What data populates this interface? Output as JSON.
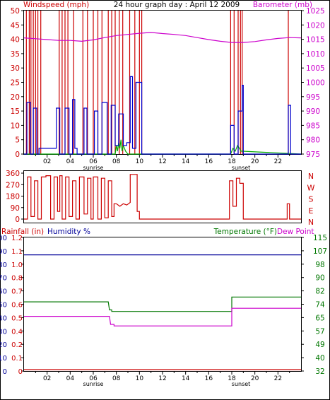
{
  "title": "24 hour graph day : April 12 2009",
  "colors": {
    "wind_speed": "#0000cc",
    "wind_gust": "#cc0000",
    "barometer": "#cc00cc",
    "temperature": "#007700",
    "dew_point": "#cc00cc",
    "humidity": "#000099",
    "rainfall": "#cc0000",
    "wind_direction": "#cc0000",
    "gust_green": "#00aa00",
    "frame": "#000000"
  },
  "chart_data": [
    {
      "type": "line",
      "left_axis_label": "Windspeed (mph)",
      "right_axis_label": "Barometer (mb)",
      "xlim": [
        0,
        24
      ],
      "x_tick_labels": [
        "02",
        "04",
        "06",
        "08",
        "10",
        "12",
        "14",
        "16",
        "18",
        "20",
        "22"
      ],
      "x_ticks": [
        2,
        4,
        6,
        8,
        10,
        12,
        14,
        16,
        18,
        20,
        22
      ],
      "sunrise_label": "sunrise",
      "sunrise_hour": 6.0,
      "sunset_label": "sunset",
      "sunset_hour": 18.8,
      "left_ylim": [
        0,
        50
      ],
      "left_ticks": [
        "0",
        "5",
        "10",
        "15",
        "20",
        "25",
        "30",
        "35",
        "40",
        "45",
        "50"
      ],
      "right_ylim": [
        975,
        1025
      ],
      "right_ticks": [
        "975",
        "980",
        "985",
        "990",
        "995",
        "1000",
        "1005",
        "1010",
        "1015",
        "1020",
        "1025"
      ],
      "gust_spikes": [
        0.2,
        0.45,
        0.6,
        0.8,
        1.0,
        1.2,
        1.45,
        3.05,
        3.3,
        3.55,
        3.8,
        4.3,
        5.1,
        5.5,
        6.0,
        6.4,
        6.75,
        7.3,
        7.6,
        7.9,
        8.25,
        8.55,
        9.15,
        9.6,
        10.0,
        10.2,
        17.9,
        18.2,
        18.55,
        18.75,
        18.9,
        22.9
      ],
      "barometer": {
        "x": [
          0,
          1,
          2,
          3,
          4,
          5,
          6,
          7,
          8,
          9,
          10,
          11,
          12,
          13,
          14,
          15,
          16,
          17,
          18,
          19,
          20,
          21,
          22,
          23,
          24
        ],
        "y": [
          1015.5,
          1015.2,
          1014.9,
          1014.6,
          1014.6,
          1014.3,
          1014.8,
          1015.6,
          1016.3,
          1016.7,
          1017.1,
          1017.4,
          1017.0,
          1016.7,
          1016.3,
          1015.6,
          1014.9,
          1014.3,
          1013.9,
          1013.9,
          1014.2,
          1014.8,
          1015.3,
          1015.6,
          1015.5
        ]
      },
      "wind_speed": {
        "x": [
          0,
          0.25,
          0.25,
          0.55,
          0.55,
          0.8,
          0.8,
          1.1,
          1.1,
          1.3,
          1.3,
          2.8,
          2.8,
          3.1,
          3.1,
          3.55,
          3.55,
          3.9,
          3.9,
          4.2,
          4.2,
          4.4,
          4.4,
          4.6,
          4.6,
          5.2,
          5.2,
          5.45,
          5.45,
          6.1,
          6.1,
          6.4,
          6.4,
          6.75,
          6.75,
          7.2,
          7.2,
          7.55,
          7.55,
          7.9,
          7.9,
          8.2,
          8.2,
          8.6,
          8.6,
          8.9,
          8.9,
          9.2,
          9.2,
          9.4,
          9.4,
          9.7,
          9.7,
          10.2,
          10.2,
          10.3,
          10.3,
          17.9,
          17.9,
          18.2,
          18.2,
          18.55,
          18.55,
          18.9,
          18.9,
          19.0,
          19.0,
          22.9,
          22.9,
          23.1,
          23.1,
          24
        ],
        "y": [
          0,
          0,
          18,
          18,
          0,
          0,
          16,
          16,
          0,
          0,
          2,
          2,
          16,
          16,
          0,
          0,
          16,
          16,
          0,
          0,
          19,
          19,
          2,
          2,
          0,
          0,
          16,
          16,
          0,
          0,
          15,
          15,
          0,
          0,
          18,
          18,
          0,
          0,
          17,
          17,
          3,
          3,
          14,
          14,
          3,
          3,
          4,
          4,
          27,
          27,
          2,
          2,
          25,
          25,
          0,
          0,
          0,
          0,
          10,
          10,
          0,
          0,
          15,
          15,
          24,
          24,
          0,
          0,
          17,
          17,
          0,
          0
        ]
      },
      "wind_gust_green": {
        "x": [
          0,
          7.9,
          8.0,
          8.1,
          8.2,
          8.3,
          8.4,
          8.5,
          8.6,
          8.7,
          8.8,
          9.0,
          17.9,
          18.1,
          18.3,
          18.5,
          18.8,
          24
        ],
        "y": [
          0,
          0,
          3,
          1,
          4,
          2,
          5,
          1,
          3,
          2,
          1,
          0,
          0,
          2,
          1,
          3,
          1,
          0
        ]
      }
    },
    {
      "type": "line",
      "left_ylim": [
        0,
        360
      ],
      "left_ticks": [
        "0",
        "90",
        "180",
        "270",
        "360"
      ],
      "right_ticks": [
        "N",
        "W",
        "S",
        "E",
        "N"
      ],
      "wind_direction": {
        "x": [
          0,
          0.3,
          0.3,
          0.6,
          0.6,
          0.9,
          0.9,
          1.2,
          1.2,
          1.5,
          1.5,
          1.9,
          1.9,
          2.3,
          2.3,
          2.6,
          2.6,
          2.9,
          2.9,
          3.1,
          3.1,
          3.3,
          3.3,
          3.6,
          3.6,
          3.9,
          3.9,
          4.2,
          4.2,
          4.5,
          4.5,
          4.8,
          4.8,
          5.2,
          5.2,
          5.5,
          5.5,
          5.8,
          5.8,
          6.0,
          6.0,
          6.4,
          6.4,
          6.7,
          6.7,
          7.0,
          7.0,
          7.3,
          7.3,
          7.6,
          7.6,
          7.8,
          7.8,
          8.0,
          8.3,
          8.6,
          8.9,
          9.2,
          9.2,
          9.8,
          9.8,
          10.0,
          10.0,
          17.8,
          17.8,
          18.1,
          18.1,
          18.4,
          18.4,
          18.7,
          18.7,
          19.0,
          19.0,
          22.8,
          22.8,
          23.0,
          23.0,
          24
        ],
        "y": [
          0,
          0,
          330,
          330,
          20,
          20,
          300,
          300,
          0,
          0,
          330,
          330,
          340,
          340,
          0,
          0,
          330,
          330,
          60,
          60,
          340,
          340,
          0,
          0,
          330,
          330,
          20,
          20,
          300,
          300,
          0,
          0,
          330,
          330,
          40,
          40,
          320,
          320,
          0,
          0,
          330,
          330,
          0,
          0,
          320,
          320,
          10,
          10,
          300,
          300,
          20,
          20,
          120,
          120,
          100,
          120,
          110,
          130,
          350,
          350,
          60,
          60,
          0,
          0,
          300,
          300,
          100,
          100,
          320,
          320,
          280,
          280,
          0,
          0,
          120,
          120,
          0,
          0
        ]
      }
    },
    {
      "type": "line",
      "rain_axis_label": "Rainfall (in)",
      "humidity_axis_label": "Humidity %",
      "temperature_axis_label": "Temperature (°F)",
      "dew_point_axis_label": "Dew Point",
      "humidity_ticks": [
        "0",
        "10",
        "20",
        "30",
        "40",
        "50",
        "60",
        "70",
        "80",
        "90",
        "100"
      ],
      "rain_ticks": [
        "0",
        "0.1",
        "0.2",
        "0.4",
        "0.5",
        "0.6",
        "0.7",
        "0.8",
        "1.0",
        "1.1",
        "1.2"
      ],
      "temp_ylim": [
        32,
        115
      ],
      "temp_ticks": [
        "32",
        "40",
        "49",
        "57",
        "65",
        "74",
        "82",
        "90",
        "98",
        "107",
        "115"
      ],
      "humidity": {
        "x": [
          0,
          24
        ],
        "y": [
          87,
          87
        ]
      },
      "rainfall": {
        "x": [
          0,
          24
        ],
        "y": [
          0,
          0
        ]
      },
      "temperature": {
        "x": [
          0,
          7.3,
          7.4,
          7.6,
          7.6,
          18.0,
          18.0,
          24
        ],
        "y": [
          75,
          75,
          70,
          70,
          69,
          69,
          78,
          78
        ]
      },
      "dew_point": {
        "x": [
          0,
          7.4,
          7.5,
          7.8,
          7.8,
          18.0,
          18.0,
          24
        ],
        "y": [
          66,
          66,
          61,
          61,
          60,
          60,
          71,
          71
        ]
      }
    }
  ]
}
